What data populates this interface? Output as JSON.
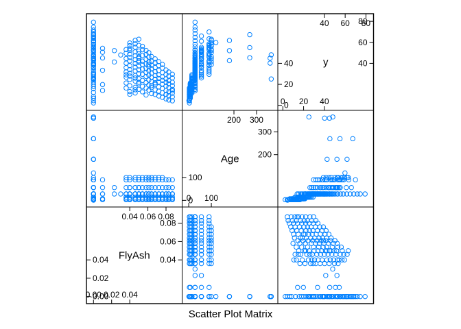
{
  "chart_data": {
    "type": "scatter",
    "title": "",
    "xlabel": "Scatter Plot Matrix",
    "point_color": "#0080ff",
    "grid": false,
    "variables": [
      {
        "name": "FlyAsh",
        "range": [
          -0.004,
          0.094
        ],
        "ticks_left": [
          "0.00",
          "0.02",
          "0.04"
        ],
        "ticks_right": [
          "0.04",
          "0.06",
          "0.08"
        ]
      },
      {
        "name": "Age",
        "range": [
          -14,
          379
        ],
        "ticks_left": [
          "0",
          "100"
        ],
        "ticks_right": [
          "200",
          "300"
        ]
      },
      {
        "name": "y",
        "range": [
          -1.5,
          84
        ],
        "ticks_left": [
          "0",
          "20",
          "40"
        ],
        "ticks_right": [
          "40",
          "60",
          "80"
        ]
      }
    ],
    "points": [
      [
        0.0,
        3,
        8.5
      ],
      [
        0.0,
        3,
        12.3
      ],
      [
        0.0,
        7,
        15.8
      ],
      [
        0.0,
        7,
        20.1
      ],
      [
        0.0,
        14,
        22.4
      ],
      [
        0.0,
        14,
        25.7
      ],
      [
        0.0,
        28,
        28.9
      ],
      [
        0.0,
        28,
        31.2
      ],
      [
        0.0,
        28,
        33.6
      ],
      [
        0.0,
        28,
        35.8
      ],
      [
        0.0,
        28,
        38.2
      ],
      [
        0.0,
        28,
        40.1
      ],
      [
        0.0,
        28,
        42.7
      ],
      [
        0.0,
        28,
        44.9
      ],
      [
        0.0,
        28,
        47.1
      ],
      [
        0.0,
        28,
        50.3
      ],
      [
        0.0,
        28,
        52.8
      ],
      [
        0.0,
        28,
        55.6
      ],
      [
        0.0,
        28,
        58.2
      ],
      [
        0.0,
        28,
        61.5
      ],
      [
        0.0,
        28,
        64.8
      ],
      [
        0.0,
        28,
        68.3
      ],
      [
        0.0,
        28,
        71.7
      ],
      [
        0.0,
        28,
        74.5
      ],
      [
        0.0,
        28,
        79.2
      ],
      [
        0.0,
        56,
        36.4
      ],
      [
        0.0,
        56,
        44.2
      ],
      [
        0.0,
        56,
        52.9
      ],
      [
        0.0,
        56,
        61.1
      ],
      [
        0.0,
        56,
        66.0
      ],
      [
        0.0,
        90,
        38.5
      ],
      [
        0.0,
        90,
        47.3
      ],
      [
        0.0,
        90,
        55.2
      ],
      [
        0.0,
        90,
        63.4
      ],
      [
        0.0,
        90,
        69.9
      ],
      [
        0.0,
        180,
        42.6
      ],
      [
        0.0,
        180,
        52.1
      ],
      [
        0.0,
        180,
        61.8
      ],
      [
        0.0,
        270,
        45.3
      ],
      [
        0.0,
        270,
        55.0
      ],
      [
        0.0,
        270,
        67.3
      ],
      [
        0.0,
        360,
        40.2
      ],
      [
        0.0,
        360,
        44.9
      ],
      [
        0.0,
        365,
        48.1
      ],
      [
        0.0,
        365,
        25.1
      ],
      [
        0.0,
        1,
        4.5
      ],
      [
        0.0,
        3,
        2.3
      ],
      [
        0.0,
        7,
        6.8
      ],
      [
        0.0,
        14,
        18.0
      ],
      [
        0.0,
        28,
        24.4
      ],
      [
        0.0,
        28,
        27.2
      ],
      [
        0.0,
        28,
        30.0
      ],
      [
        0.0,
        56,
        39.3
      ],
      [
        0.0,
        100,
        57.6
      ],
      [
        0.0,
        120,
        59.8
      ],
      [
        0.01,
        3,
        14.2
      ],
      [
        0.01,
        7,
        19.8
      ],
      [
        0.01,
        28,
        33.4
      ],
      [
        0.01,
        28,
        45.1
      ],
      [
        0.01,
        56,
        50.6
      ],
      [
        0.01,
        90,
        54.3
      ],
      [
        0.023,
        28,
        41.3
      ],
      [
        0.023,
        56,
        52.1
      ],
      [
        0.03,
        28,
        48.0
      ],
      [
        0.036,
        3,
        16.5
      ],
      [
        0.036,
        7,
        21.3
      ],
      [
        0.036,
        14,
        26.7
      ],
      [
        0.036,
        28,
        31.8
      ],
      [
        0.036,
        28,
        35.9
      ],
      [
        0.036,
        28,
        40.2
      ],
      [
        0.036,
        56,
        44.6
      ],
      [
        0.036,
        90,
        49.7
      ],
      [
        0.036,
        100,
        53.2
      ],
      [
        0.036,
        14,
        29.1
      ],
      [
        0.04,
        3,
        13.1
      ],
      [
        0.04,
        7,
        18.7
      ],
      [
        0.04,
        14,
        24.6
      ],
      [
        0.04,
        28,
        30.5
      ],
      [
        0.04,
        28,
        34.0
      ],
      [
        0.04,
        28,
        37.8
      ],
      [
        0.04,
        28,
        42.3
      ],
      [
        0.04,
        28,
        45.6
      ],
      [
        0.04,
        56,
        48.8
      ],
      [
        0.04,
        56,
        54.1
      ],
      [
        0.04,
        90,
        56.9
      ],
      [
        0.04,
        100,
        59.4
      ],
      [
        0.04,
        3,
        10.6
      ],
      [
        0.04,
        14,
        27.9
      ],
      [
        0.04,
        28,
        52.4
      ],
      [
        0.046,
        3,
        11.8
      ],
      [
        0.046,
        7,
        17.2
      ],
      [
        0.046,
        14,
        23.1
      ],
      [
        0.046,
        28,
        28.4
      ],
      [
        0.046,
        28,
        32.7
      ],
      [
        0.046,
        28,
        36.4
      ],
      [
        0.046,
        28,
        39.9
      ],
      [
        0.046,
        28,
        43.5
      ],
      [
        0.046,
        28,
        47.2
      ],
      [
        0.046,
        56,
        50.9
      ],
      [
        0.046,
        56,
        55.3
      ],
      [
        0.046,
        90,
        58.6
      ],
      [
        0.046,
        100,
        61.9
      ],
      [
        0.046,
        7,
        14.9
      ],
      [
        0.046,
        28,
        26.0
      ],
      [
        0.05,
        3,
        15.3
      ],
      [
        0.05,
        7,
        20.6
      ],
      [
        0.05,
        14,
        25.4
      ],
      [
        0.05,
        28,
        30.1
      ],
      [
        0.05,
        28,
        33.8
      ],
      [
        0.05,
        28,
        37.5
      ],
      [
        0.05,
        28,
        41.0
      ],
      [
        0.05,
        28,
        44.8
      ],
      [
        0.05,
        56,
        46.3
      ],
      [
        0.05,
        56,
        51.7
      ],
      [
        0.05,
        90,
        57.2
      ],
      [
        0.05,
        100,
        63.0
      ],
      [
        0.05,
        28,
        49.3
      ],
      [
        0.05,
        14,
        22.0
      ],
      [
        0.05,
        90,
        42.4
      ],
      [
        0.054,
        3,
        12.9
      ],
      [
        0.054,
        7,
        18.1
      ],
      [
        0.054,
        14,
        23.8
      ],
      [
        0.054,
        28,
        29.6
      ],
      [
        0.054,
        28,
        34.5
      ],
      [
        0.054,
        28,
        38.9
      ],
      [
        0.054,
        28,
        42.1
      ],
      [
        0.054,
        56,
        47.6
      ],
      [
        0.054,
        90,
        53.0
      ],
      [
        0.054,
        100,
        56.2
      ],
      [
        0.058,
        3,
        9.8
      ],
      [
        0.058,
        7,
        16.4
      ],
      [
        0.058,
        14,
        21.7
      ],
      [
        0.058,
        28,
        27.5
      ],
      [
        0.058,
        28,
        31.4
      ],
      [
        0.058,
        28,
        35.2
      ],
      [
        0.058,
        28,
        39.6
      ],
      [
        0.058,
        56,
        43.8
      ],
      [
        0.058,
        90,
        48.5
      ],
      [
        0.058,
        100,
        52.3
      ],
      [
        0.061,
        3,
        14.6
      ],
      [
        0.061,
        7,
        19.4
      ],
      [
        0.061,
        14,
        24.1
      ],
      [
        0.061,
        28,
        28.7
      ],
      [
        0.061,
        28,
        32.9
      ],
      [
        0.061,
        28,
        36.8
      ],
      [
        0.061,
        56,
        41.5
      ],
      [
        0.061,
        90,
        45.9
      ],
      [
        0.061,
        100,
        50.2
      ],
      [
        0.061,
        28,
        39.1
      ],
      [
        0.064,
        3,
        11.2
      ],
      [
        0.064,
        7,
        16.9
      ],
      [
        0.064,
        14,
        22.6
      ],
      [
        0.064,
        28,
        26.8
      ],
      [
        0.064,
        28,
        30.7
      ],
      [
        0.064,
        28,
        34.9
      ],
      [
        0.064,
        56,
        38.3
      ],
      [
        0.064,
        90,
        42.0
      ],
      [
        0.064,
        100,
        46.5
      ],
      [
        0.064,
        14,
        18.8
      ],
      [
        0.068,
        3,
        10.4
      ],
      [
        0.068,
        7,
        14.8
      ],
      [
        0.068,
        14,
        19.9
      ],
      [
        0.068,
        28,
        24.9
      ],
      [
        0.068,
        28,
        28.3
      ],
      [
        0.068,
        28,
        32.1
      ],
      [
        0.068,
        56,
        36.0
      ],
      [
        0.068,
        90,
        40.7
      ],
      [
        0.068,
        100,
        44.3
      ],
      [
        0.068,
        28,
        21.5
      ],
      [
        0.072,
        3,
        8.9
      ],
      [
        0.072,
        7,
        13.5
      ],
      [
        0.072,
        14,
        17.6
      ],
      [
        0.072,
        28,
        22.3
      ],
      [
        0.072,
        28,
        25.6
      ],
      [
        0.072,
        28,
        29.0
      ],
      [
        0.072,
        56,
        33.2
      ],
      [
        0.072,
        90,
        37.9
      ],
      [
        0.072,
        100,
        41.6
      ],
      [
        0.076,
        3,
        7.6
      ],
      [
        0.076,
        7,
        11.9
      ],
      [
        0.076,
        14,
        16.0
      ],
      [
        0.076,
        28,
        20.4
      ],
      [
        0.076,
        28,
        23.8
      ],
      [
        0.076,
        28,
        27.1
      ],
      [
        0.076,
        56,
        31.3
      ],
      [
        0.076,
        90,
        35.6
      ],
      [
        0.076,
        100,
        39.0
      ],
      [
        0.08,
        3,
        6.2
      ],
      [
        0.08,
        7,
        10.5
      ],
      [
        0.08,
        14,
        14.1
      ],
      [
        0.08,
        28,
        18.3
      ],
      [
        0.08,
        28,
        21.9
      ],
      [
        0.08,
        28,
        25.2
      ],
      [
        0.08,
        56,
        29.4
      ],
      [
        0.08,
        90,
        33.7
      ],
      [
        0.083,
        3,
        5.1
      ],
      [
        0.083,
        7,
        9.2
      ],
      [
        0.083,
        14,
        12.8
      ],
      [
        0.083,
        28,
        16.9
      ],
      [
        0.083,
        28,
        20.5
      ],
      [
        0.083,
        28,
        23.7
      ],
      [
        0.083,
        56,
        27.9
      ],
      [
        0.083,
        90,
        31.8
      ],
      [
        0.087,
        3,
        4.3
      ],
      [
        0.087,
        7,
        8.1
      ],
      [
        0.087,
        14,
        11.6
      ],
      [
        0.087,
        28,
        15.2
      ],
      [
        0.087,
        28,
        18.7
      ],
      [
        0.087,
        28,
        22.0
      ],
      [
        0.087,
        56,
        26.1
      ],
      [
        0.087,
        90,
        29.6
      ],
      [
        0.087,
        28,
        13.8
      ]
    ]
  }
}
